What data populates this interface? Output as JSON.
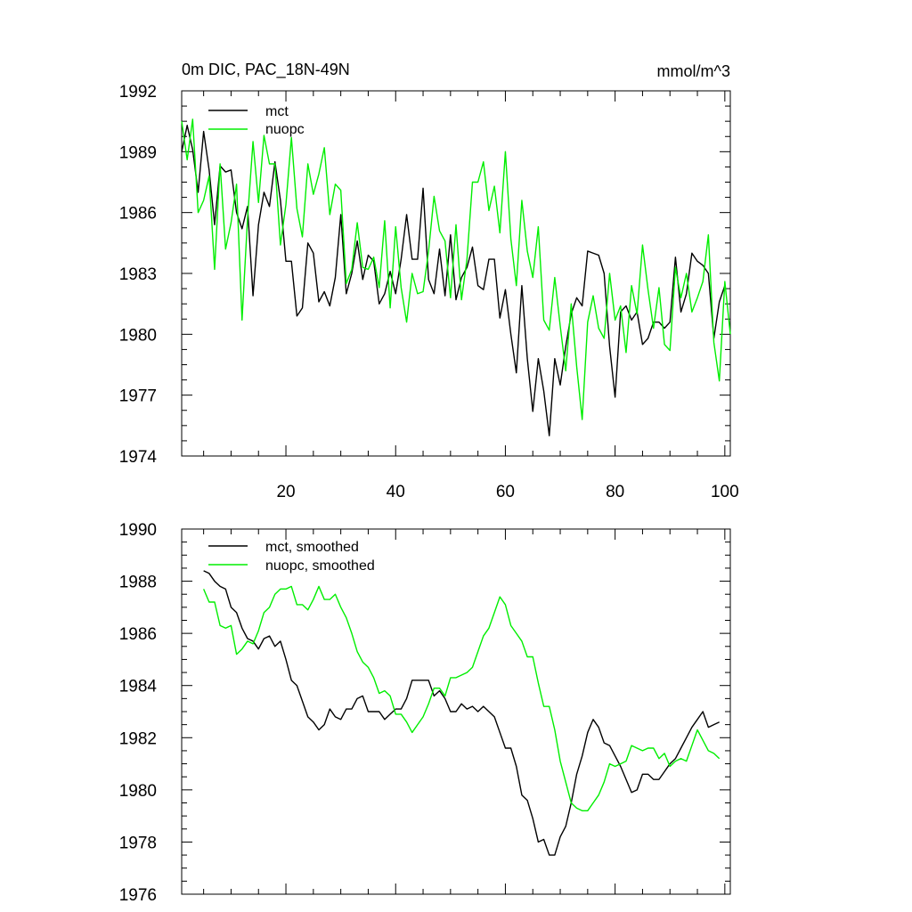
{
  "chart_data": [
    {
      "type": "line",
      "title": "0m DIC, PAC_18N-49N",
      "units": "mmol/m^3",
      "xlabel": "",
      "ylabel": "",
      "xlim": [
        1,
        101
      ],
      "ylim": [
        1974,
        1992
      ],
      "x_ticks": [
        20,
        40,
        60,
        80,
        100
      ],
      "y_ticks": [
        1974,
        1977,
        1980,
        1983,
        1986,
        1989,
        1992
      ],
      "x_tick_labels": [
        "20",
        "40",
        "60",
        "80",
        "100"
      ],
      "y_tick_labels": [
        "1974",
        "1977",
        "1980",
        "1983",
        "1986",
        "1989",
        "1992"
      ],
      "legend_position": "top-left",
      "x_start": 1,
      "series": [
        {
          "name": "mct",
          "color": "#000000",
          "values": [
            1989.0,
            1990.3,
            1989.1,
            1987.0,
            1990.0,
            1988.1,
            1985.4,
            1988.3,
            1988.0,
            1988.1,
            1986.0,
            1985.2,
            1986.3,
            1981.9,
            1985.4,
            1987.0,
            1986.3,
            1988.5,
            1986.6,
            1983.6,
            1983.6,
            1980.9,
            1981.3,
            1984.5,
            1984.0,
            1981.6,
            1982.1,
            1981.4,
            1982.8,
            1985.9,
            1982.0,
            1983.0,
            1984.6,
            1982.7,
            1983.9,
            1983.6,
            1981.5,
            1982.0,
            1983.1,
            1982.0,
            1983.7,
            1985.9,
            1983.7,
            1983.7,
            1987.2,
            1982.7,
            1982.0,
            1984.2,
            1981.9,
            1984.9,
            1981.7,
            1982.8,
            1983.3,
            1984.3,
            1982.4,
            1982.2,
            1983.7,
            1983.7,
            1980.8,
            1982.2,
            1980.0,
            1978.1,
            1982.4,
            1978.8,
            1976.2,
            1978.8,
            1977.2,
            1975.0,
            1978.8,
            1977.5,
            1979.4,
            1981.0,
            1981.8,
            1981.4,
            1984.1,
            1984.0,
            1983.9,
            1983.0,
            1979.4,
            1976.9,
            1981.1,
            1981.4,
            1980.7,
            1981.1,
            1979.5,
            1979.8,
            1980.6,
            1980.6,
            1980.3,
            1980.6,
            1983.8,
            1981.1,
            1982.0,
            1984.0,
            1983.6,
            1983.4,
            1983.0,
            1979.8,
            1981.6,
            1982.4
          ]
        },
        {
          "name": "nuopc",
          "color": "#00ee00",
          "values": [
            1990.5,
            1988.6,
            1990.6,
            1986.0,
            1986.6,
            1987.8,
            1983.2,
            1988.4,
            1984.2,
            1985.5,
            1987.4,
            1980.7,
            1985.7,
            1989.5,
            1986.5,
            1989.8,
            1988.4,
            1988.4,
            1984.4,
            1986.4,
            1989.7,
            1986.2,
            1984.8,
            1988.4,
            1986.9,
            1987.9,
            1989.2,
            1985.9,
            1987.4,
            1987.1,
            1982.5,
            1983.2,
            1985.5,
            1983.3,
            1983.2,
            1983.8,
            1982.3,
            1985.6,
            1981.3,
            1985.3,
            1982.3,
            1980.6,
            1983.0,
            1982.0,
            1982.1,
            1984.1,
            1986.8,
            1985.1,
            1984.6,
            1981.8,
            1985.4,
            1981.7,
            1983.7,
            1987.5,
            1987.5,
            1988.5,
            1986.1,
            1987.3,
            1985.0,
            1989.0,
            1984.7,
            1982.4,
            1986.6,
            1984.1,
            1982.8,
            1985.3,
            1980.7,
            1980.2,
            1982.8,
            1980.4,
            1978.2,
            1981.5,
            1978.4,
            1975.8,
            1980.6,
            1981.9,
            1980.3,
            1979.8,
            1983.0,
            1980.7,
            1981.4,
            1979.1,
            1982.4,
            1981.0,
            1984.4,
            1982.2,
            1980.3,
            1982.3,
            1979.5,
            1979.2,
            1983.3,
            1981.8,
            1983.0,
            1981.1,
            1981.8,
            1982.6,
            1984.9,
            1979.6,
            1977.7,
            1982.6,
            1980.0
          ]
        }
      ]
    },
    {
      "type": "line",
      "title": "",
      "xlabel": "",
      "ylabel": "",
      "xlim": [
        1,
        101
      ],
      "ylim": [
        1976,
        1990
      ],
      "x_ticks": [
        20,
        40,
        60,
        80,
        100
      ],
      "y_ticks": [
        1976,
        1978,
        1980,
        1982,
        1984,
        1986,
        1988,
        1990
      ],
      "y_tick_labels": [
        "1976",
        "1978",
        "1980",
        "1982",
        "1984",
        "1986",
        "1988",
        "1990"
      ],
      "legend_position": "top-left",
      "x_start": 5,
      "series": [
        {
          "name": "mct, smoothed",
          "color": "#000000",
          "values": [
            1988.4,
            1988.3,
            1988.0,
            1987.8,
            1987.7,
            1987.0,
            1986.8,
            1986.2,
            1985.8,
            1985.7,
            1985.4,
            1985.8,
            1985.9,
            1985.5,
            1985.7,
            1985.0,
            1984.2,
            1984.0,
            1983.4,
            1982.8,
            1982.6,
            1982.3,
            1982.5,
            1983.1,
            1982.8,
            1982.7,
            1983.1,
            1983.1,
            1983.5,
            1983.6,
            1983.0,
            1983.0,
            1983.0,
            1982.7,
            1982.9,
            1983.1,
            1983.1,
            1983.5,
            1984.2,
            1984.2,
            1984.2,
            1984.2,
            1983.6,
            1983.8,
            1983.5,
            1983.0,
            1983.0,
            1983.3,
            1983.1,
            1983.2,
            1983.0,
            1983.2,
            1983.0,
            1982.8,
            1982.2,
            1981.6,
            1981.6,
            1980.9,
            1979.8,
            1979.6,
            1978.9,
            1978.0,
            1978.1,
            1977.5,
            1977.5,
            1978.2,
            1978.6,
            1979.5,
            1980.6,
            1981.3,
            1982.2,
            1982.7,
            1982.4,
            1981.8,
            1981.7,
            1981.3,
            1980.9,
            1980.4,
            1979.9,
            1980.0,
            1980.6,
            1980.6,
            1980.4,
            1980.4,
            1980.7,
            1981.0,
            1981.2,
            1981.6,
            1982.0,
            1982.4,
            1982.7,
            1983.0,
            1982.4,
            1982.5,
            1982.6
          ]
        },
        {
          "name": "nuopc, smoothed",
          "color": "#00ee00",
          "values": [
            1987.7,
            1987.2,
            1987.2,
            1986.3,
            1986.2,
            1986.3,
            1985.2,
            1985.4,
            1985.7,
            1985.6,
            1986.1,
            1986.8,
            1987.0,
            1987.5,
            1987.7,
            1987.7,
            1987.8,
            1987.1,
            1987.1,
            1986.9,
            1987.3,
            1987.8,
            1987.3,
            1987.3,
            1987.5,
            1987.0,
            1986.6,
            1986.0,
            1985.3,
            1984.9,
            1984.7,
            1984.3,
            1983.7,
            1983.8,
            1983.6,
            1982.9,
            1982.9,
            1982.6,
            1982.2,
            1982.5,
            1982.8,
            1983.3,
            1983.9,
            1983.9,
            1983.6,
            1984.3,
            1984.3,
            1984.4,
            1984.5,
            1984.7,
            1985.3,
            1985.9,
            1986.2,
            1986.8,
            1987.4,
            1987.1,
            1986.3,
            1986.0,
            1985.7,
            1985.1,
            1985.1,
            1984.1,
            1983.2,
            1983.2,
            1982.3,
            1981.1,
            1980.3,
            1979.5,
            1979.3,
            1979.2,
            1979.2,
            1979.5,
            1979.8,
            1980.3,
            1981.0,
            1980.9,
            1981.0,
            1981.1,
            1981.7,
            1981.6,
            1981.5,
            1981.6,
            1981.6,
            1981.2,
            1981.4,
            1980.9,
            1981.1,
            1981.2,
            1981.1,
            1981.7,
            1982.3,
            1981.9,
            1981.5,
            1981.4,
            1981.2
          ]
        }
      ]
    }
  ]
}
